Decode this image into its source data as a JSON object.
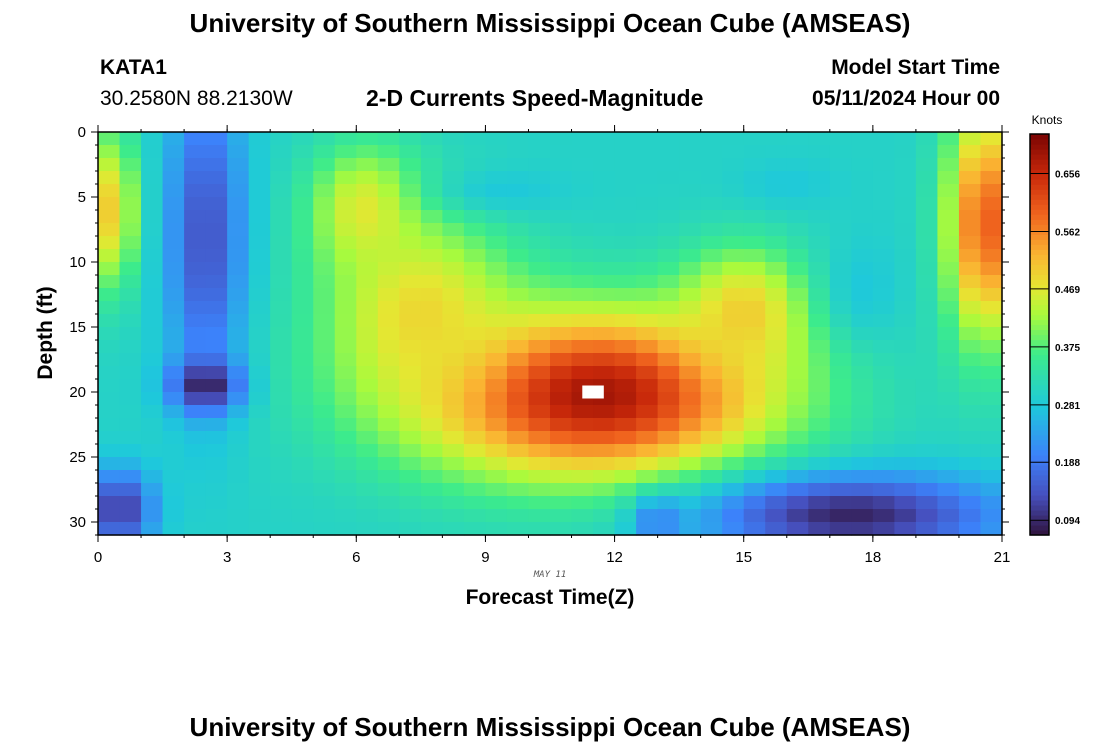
{
  "header": {
    "title": "University of Southern Mississippi Ocean Cube (AMSEAS)",
    "station_id": "KATA1",
    "coordinates": "30.2580N  88.2130W",
    "subtitle": "2-D Currents Speed-Magnitude",
    "model_start_label": "Model Start Time",
    "model_start_value": "05/11/2024 Hour 00"
  },
  "footer": {
    "title": "University of Southern Mississippi Ocean Cube (AMSEAS)"
  },
  "chart_data": {
    "type": "heatmap",
    "title": "2-D Currents Speed-Magnitude",
    "xlabel": "Forecast Time(Z)",
    "ylabel": "Depth (ft)",
    "x_annotation": "MAY 11",
    "xlim": [
      0,
      21
    ],
    "ylim": [
      0,
      31
    ],
    "x_ticks": [
      0,
      3,
      6,
      9,
      12,
      15,
      18,
      21
    ],
    "y_ticks": [
      0,
      5,
      10,
      15,
      20,
      25,
      30
    ],
    "colorbar": {
      "label": "Knots",
      "range": [
        0.07,
        0.72
      ],
      "ticks": [
        0.094,
        0.188,
        0.281,
        0.375,
        0.469,
        0.562,
        0.656
      ],
      "tick_labels": [
        "0.094",
        "0.188",
        "0.281",
        "0.375",
        "0.469",
        "0.562",
        "0.656"
      ]
    },
    "grid_shape": {
      "time_steps": 42,
      "depth_levels": 31
    },
    "speed_field": {
      "description_units": "knots",
      "background": 0.3,
      "features": [
        {
          "kind": "ellipse",
          "t": 11.5,
          "d": 20.2,
          "rt": 4.2,
          "rd": 6.5,
          "peak": 0.69
        },
        {
          "kind": "ellipse",
          "t": 7.5,
          "d": 14.0,
          "rt": 2.2,
          "rd": 7.5,
          "peak": 0.49
        },
        {
          "kind": "ellipse",
          "t": 6.2,
          "d": 6.0,
          "rt": 1.3,
          "rd": 5.0,
          "peak": 0.47
        },
        {
          "kind": "ellipse",
          "t": 15.0,
          "d": 14.0,
          "rt": 1.5,
          "rd": 5.0,
          "peak": 0.5
        },
        {
          "kind": "ellipse",
          "t": 2.5,
          "d": 8.0,
          "rt": 0.9,
          "rd": 12.0,
          "peak": 0.14
        },
        {
          "kind": "ellipse",
          "t": 2.5,
          "d": 19.5,
          "rt": 0.8,
          "rd": 2.0,
          "peak": 0.08
        },
        {
          "kind": "ellipse",
          "t": 9.5,
          "d": 4.5,
          "rt": 1.6,
          "rd": 1.8,
          "peak": 0.28
        },
        {
          "kind": "ellipse",
          "t": 16.0,
          "d": 4.0,
          "rt": 1.2,
          "rd": 1.8,
          "peak": 0.28
        },
        {
          "kind": "ellipse",
          "t": 17.8,
          "d": 12.0,
          "rt": 0.9,
          "rd": 4.0,
          "peak": 0.28
        },
        {
          "kind": "ellipse",
          "t": 20.6,
          "d": 7.0,
          "rt": 0.9,
          "rd": 9.0,
          "peak": 0.6
        },
        {
          "kind": "ellipse",
          "t": 0.3,
          "d": 6.0,
          "rt": 0.6,
          "rd": 6.0,
          "peak": 0.5
        },
        {
          "kind": "ellipse",
          "t": 17.5,
          "d": 29.5,
          "rt": 3.5,
          "rd": 3.2,
          "peak": 0.09
        },
        {
          "kind": "ellipse",
          "t": 0.5,
          "d": 29.0,
          "rt": 0.8,
          "rd": 3.0,
          "peak": 0.11
        },
        {
          "kind": "ellipse",
          "t": 13.0,
          "d": 30.0,
          "rt": 0.6,
          "rd": 2.0,
          "peak": 0.2
        }
      ],
      "masked_cell": {
        "t": 11.5,
        "d": 20.0
      }
    }
  }
}
